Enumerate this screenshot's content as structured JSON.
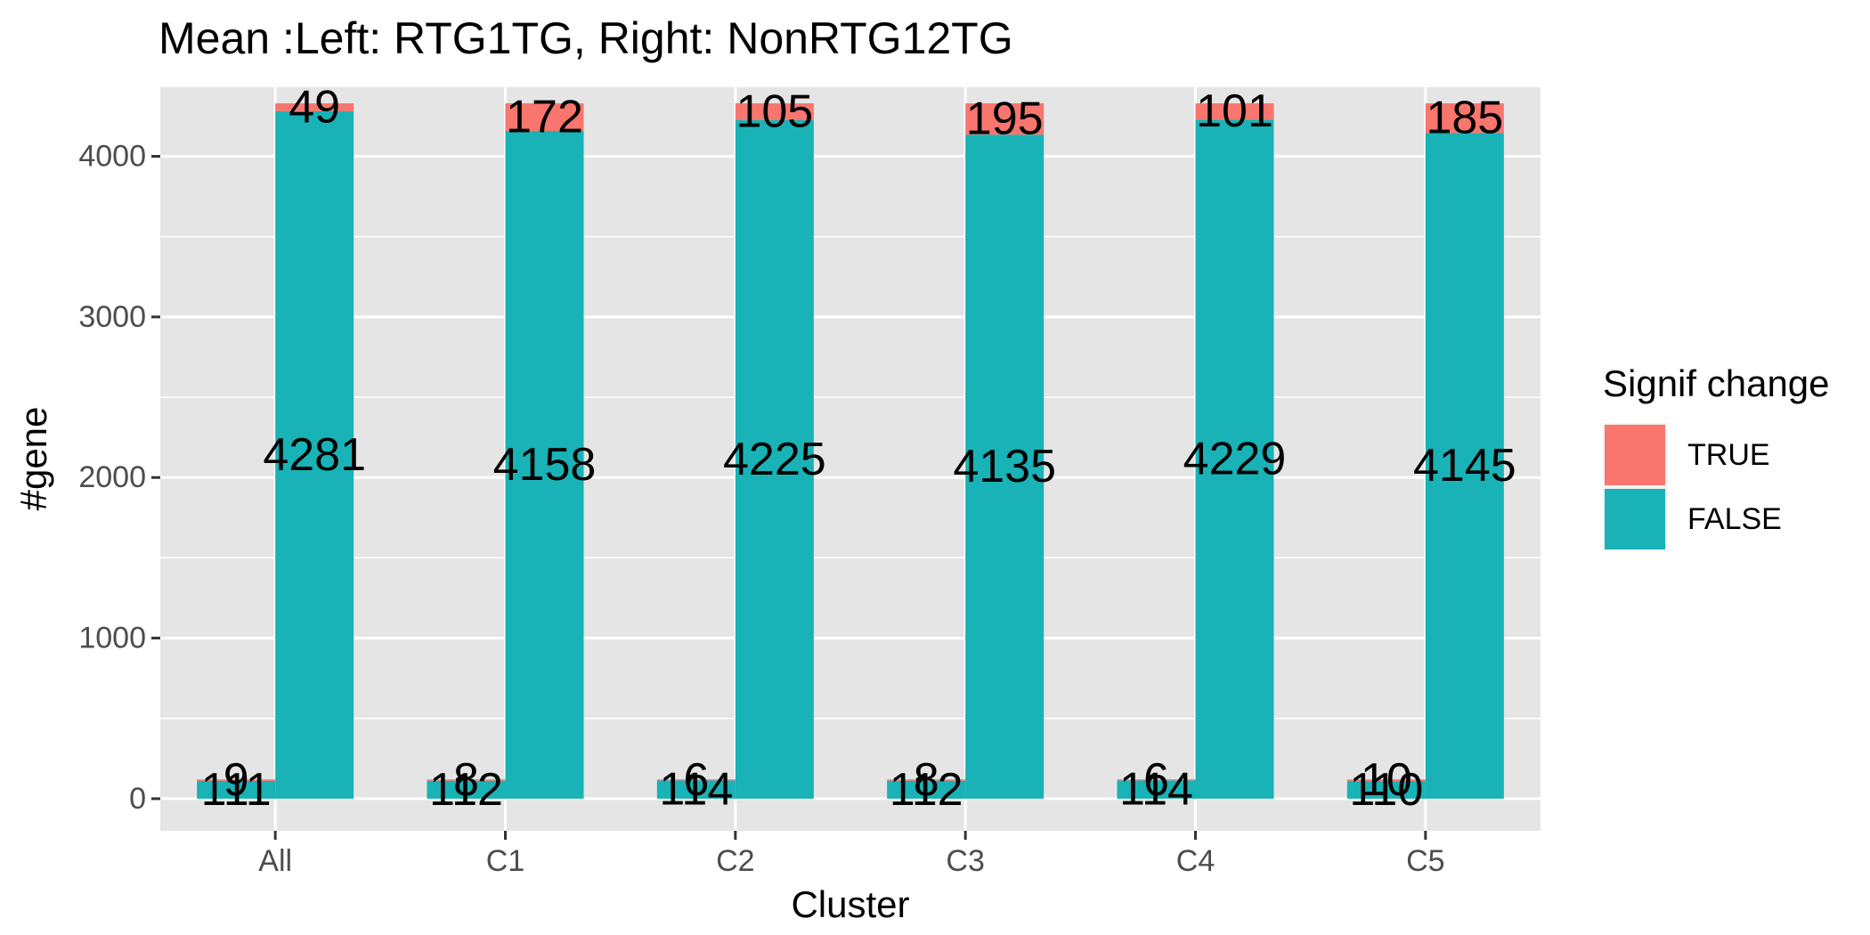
{
  "chart_data": {
    "type": "bar",
    "stacked": true,
    "title": "Mean  :Left: RTG1TG, Right: NonRTG12TG",
    "xlabel": "Cluster",
    "ylabel": "#gene",
    "categories": [
      "All",
      "C1",
      "C2",
      "C3",
      "C4",
      "C5"
    ],
    "groups": [
      "RTG1TG",
      "NonRTG12TG"
    ],
    "ylim": [
      -200,
      4430
    ],
    "yticks": [
      0,
      1000,
      2000,
      3000,
      4000
    ],
    "ytick_labels": [
      "0",
      "1000",
      "2000",
      "3000",
      "4000"
    ],
    "grid": true,
    "series": [
      {
        "name": "TRUE",
        "color": "#F8766D",
        "left_values": [
          9,
          8,
          6,
          8,
          6,
          10
        ],
        "right_values": [
          49,
          172,
          105,
          195,
          101,
          185
        ]
      },
      {
        "name": "FALSE",
        "color": "#19B2B6",
        "left_values": [
          111,
          112,
          114,
          112,
          114,
          110
        ],
        "right_values": [
          4281,
          4158,
          4225,
          4135,
          4229,
          4145
        ]
      }
    ],
    "legend": {
      "title": "Signif change",
      "position": "right",
      "entries": [
        "TRUE",
        "FALSE"
      ]
    },
    "panel_color": "#E5E5E5",
    "grid_color": "#FFFFFF"
  }
}
